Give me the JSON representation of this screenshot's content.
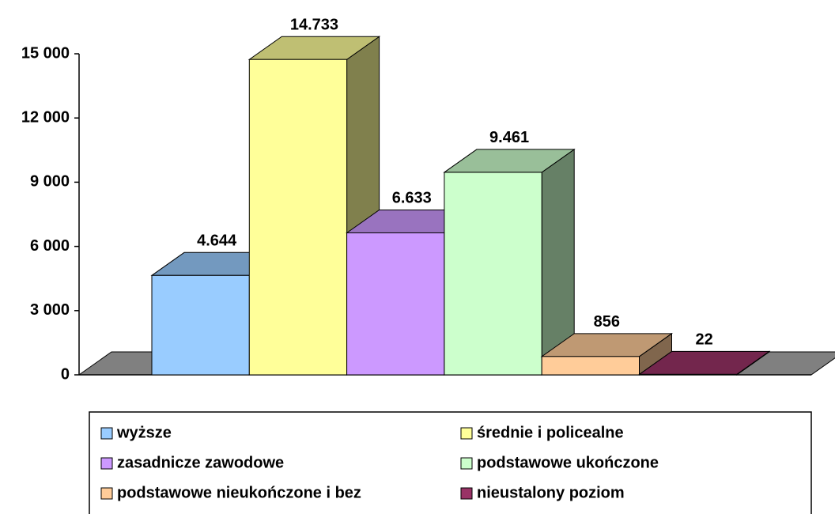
{
  "chart_data": {
    "type": "bar3d",
    "series": [
      {
        "name": "wyższe",
        "color": "#99ccff",
        "values": [
          4644
        ],
        "value_labels": [
          "4.644"
        ]
      },
      {
        "name": "średnie i policealne",
        "color": "#ffff99",
        "values": [
          14733
        ],
        "value_labels": [
          "14.733"
        ]
      },
      {
        "name": "zasadnicze zawodowe",
        "color": "#cc99ff",
        "values": [
          6633
        ],
        "value_labels": [
          "6.633"
        ]
      },
      {
        "name": "podstawowe ukończone",
        "color": "#ccffcc",
        "values": [
          9461
        ],
        "value_labels": [
          "9.461"
        ]
      },
      {
        "name": "podstawowe nieukończone i bez",
        "color": "#ffcc99",
        "values": [
          856
        ]
      },
      {
        "name": "nieustalony poziom",
        "color": "#993366",
        "values": [
          22
        ]
      }
    ],
    "ylim": [
      0,
      15000
    ],
    "yticks": [
      0,
      {
        "value": 3000,
        "label": "3 000"
      },
      {
        "value": 6000,
        "label": "6 000"
      },
      {
        "value": 9000,
        "label": "9 000"
      },
      {
        "value": 12000,
        "label": "12 000"
      },
      {
        "value": 15000,
        "label": "15 000"
      }
    ],
    "floor_color": "#808080"
  }
}
